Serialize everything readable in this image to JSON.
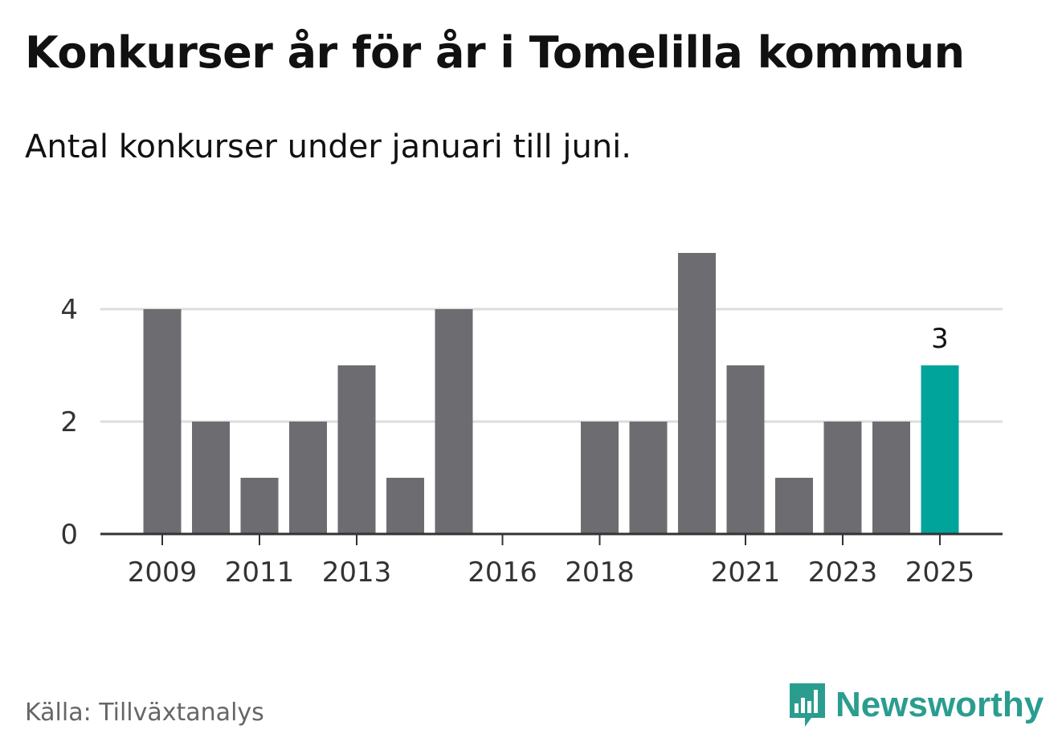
{
  "header": {
    "title": "Konkurser år för år i Tomelilla kommun",
    "subtitle": "Antal konkurser under januari till juni."
  },
  "footer": {
    "source": "Källa: Tillväxtanalys",
    "brand": "Newsworthy"
  },
  "colors": {
    "bar": "#6d6c71",
    "highlight": "#00a49a",
    "brand": "#2a9d8f",
    "grid": "#dddddd",
    "axis": "#333333",
    "text": "#333333"
  },
  "chart_data": {
    "type": "bar",
    "title": "Konkurser år för år i Tomelilla kommun",
    "subtitle": "Antal konkurser under januari till juni.",
    "categories": [
      "2009",
      "2010",
      "2011",
      "2012",
      "2013",
      "2014",
      "2015",
      "2016",
      "2017",
      "2018",
      "2019",
      "2020",
      "2021",
      "2022",
      "2023",
      "2024",
      "2025"
    ],
    "values": [
      4,
      2,
      1,
      2,
      3,
      1,
      4,
      0,
      0,
      2,
      2,
      5,
      3,
      1,
      2,
      2,
      3
    ],
    "xticks": [
      "2009",
      "2011",
      "2013",
      "2016",
      "2018",
      "2021",
      "2023",
      "2025"
    ],
    "yticks": [
      0,
      2,
      4
    ],
    "ylim": [
      0,
      5
    ],
    "grid": true,
    "highlight_index": 16,
    "data_labels": [
      {
        "category": "2025",
        "text": "3"
      }
    ],
    "xlabel": "",
    "ylabel": ""
  }
}
